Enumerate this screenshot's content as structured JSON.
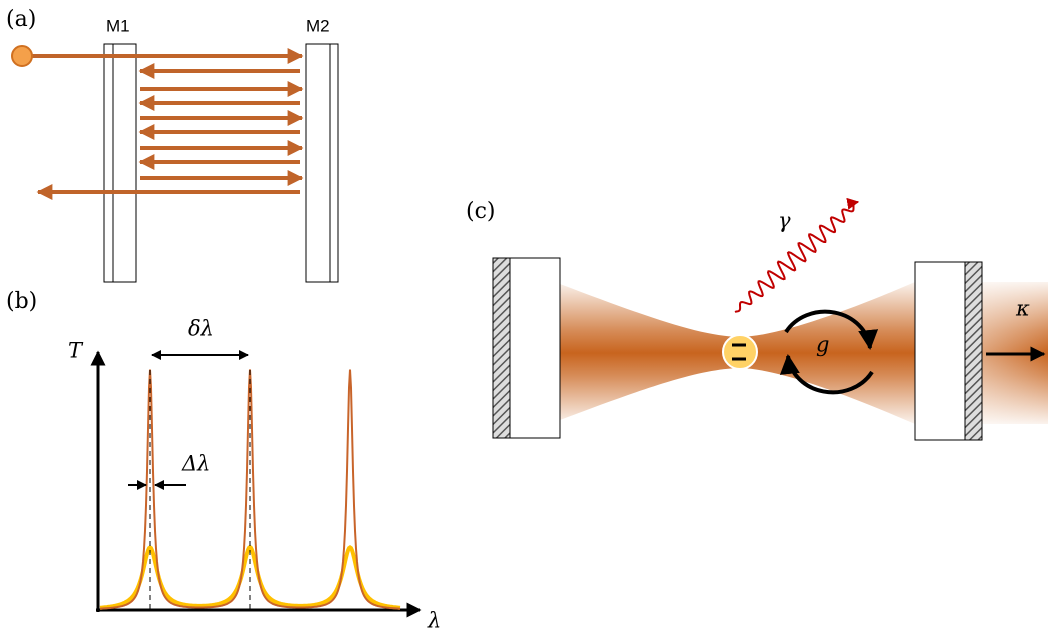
{
  "panel_a": {
    "label": "(a)",
    "mirror_1": "M1",
    "mirror_2": "M2"
  },
  "panel_b": {
    "label": "(b)",
    "y_axis": "T",
    "x_axis": "λ",
    "spacing": "δλ",
    "width": "Δλ"
  },
  "panel_c": {
    "label": "(c)",
    "decay": "γ",
    "coupling": "g",
    "loss": "κ"
  }
}
